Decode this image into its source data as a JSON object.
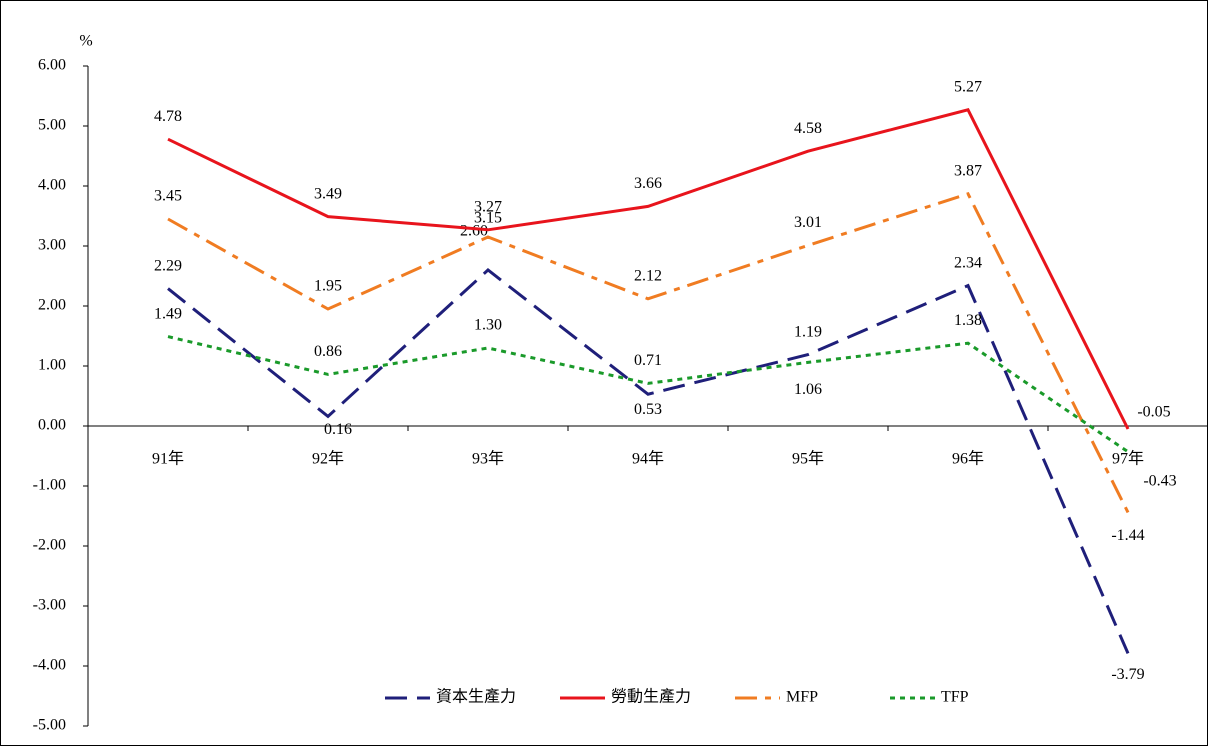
{
  "chart_data": {
    "type": "line",
    "y_unit": "%",
    "categories": [
      "91年",
      "92年",
      "93年",
      "94年",
      "95年",
      "96年",
      "97年"
    ],
    "series": [
      {
        "name": "資本生產力",
        "color": "#1f1f7a",
        "dash": "dashed",
        "values": [
          2.29,
          0.16,
          2.6,
          0.53,
          1.19,
          2.34,
          -3.79
        ],
        "value_labels": [
          "2.29",
          "0.16",
          "2.60",
          "0.53",
          "1.19",
          "2.34",
          "-3.79"
        ]
      },
      {
        "name": "勞動生產力",
        "color": "#e8141c",
        "dash": "solid",
        "values": [
          4.78,
          3.49,
          3.27,
          3.66,
          4.58,
          5.27,
          -0.05
        ],
        "value_labels": [
          "4.78",
          "3.49",
          "3.27",
          "3.66",
          "4.58",
          "5.27",
          "-0.05"
        ]
      },
      {
        "name": "MFP",
        "color": "#f07c22",
        "dash": "dashdot",
        "values": [
          3.45,
          1.95,
          3.15,
          2.12,
          3.01,
          3.87,
          -1.44
        ],
        "value_labels": [
          "3.45",
          "1.95",
          "3.15",
          "2.12",
          "3.01",
          "3.87",
          "-1.44"
        ]
      },
      {
        "name": "TFP",
        "color": "#1a9a2a",
        "dash": "dotted",
        "values": [
          1.49,
          0.86,
          1.3,
          0.71,
          1.06,
          1.38,
          -0.43
        ],
        "value_labels": [
          "1.49",
          "0.86",
          "1.30",
          "0.71",
          "1.06",
          "1.38",
          "-0.43"
        ]
      }
    ],
    "ylim": [
      -5,
      6
    ],
    "yticks": [
      {
        "value": -5,
        "label": "-5.00"
      },
      {
        "value": -4,
        "label": "-4.00"
      },
      {
        "value": -3,
        "label": "-3.00"
      },
      {
        "value": -2,
        "label": "-2.00"
      },
      {
        "value": -1,
        "label": "-1.00"
      },
      {
        "value": 0,
        "label": "0.00"
      },
      {
        "value": 1,
        "label": "1.00"
      },
      {
        "value": 2,
        "label": "2.00"
      },
      {
        "value": 3,
        "label": "3.00"
      },
      {
        "value": 4,
        "label": "4.00"
      },
      {
        "value": 5,
        "label": "5.00"
      },
      {
        "value": 6,
        "label": "6.00"
      }
    ],
    "legend": "bottom"
  }
}
